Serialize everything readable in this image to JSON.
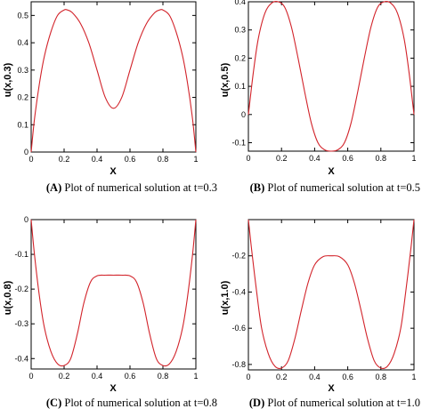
{
  "chart_data": [
    {
      "type": "line",
      "caption_tag": "(A)",
      "caption_text": "Plot of numerical solution at t=0.3",
      "xlabel": "X",
      "ylabel": "u(x,0.3)",
      "xlim": [
        0,
        1
      ],
      "ylim": [
        0,
        0.55
      ],
      "xticks": [
        0,
        0.2,
        0.4,
        0.6,
        0.8,
        1
      ],
      "xtick_labels": [
        "0",
        "0.2",
        "0.4",
        "0.6",
        "0.8",
        "1"
      ],
      "yticks": [
        0,
        0.1,
        0.2,
        0.3,
        0.4,
        0.5
      ],
      "ytick_labels": [
        "0",
        "0.1",
        "0.2",
        "0.3",
        "0.4",
        "0.5"
      ],
      "series": [
        {
          "x": [
            0,
            0.02,
            0.05,
            0.08,
            0.12,
            0.16,
            0.2,
            0.22,
            0.25,
            0.3,
            0.35,
            0.4,
            0.45,
            0.5,
            0.55,
            0.6,
            0.65,
            0.7,
            0.75,
            0.78,
            0.8,
            0.84,
            0.88,
            0.92,
            0.95,
            0.98,
            1.0
          ],
          "y": [
            0.0,
            0.12,
            0.25,
            0.35,
            0.44,
            0.5,
            0.52,
            0.52,
            0.51,
            0.47,
            0.4,
            0.3,
            0.2,
            0.16,
            0.2,
            0.3,
            0.4,
            0.47,
            0.51,
            0.52,
            0.52,
            0.5,
            0.44,
            0.35,
            0.25,
            0.12,
            0.0
          ]
        }
      ]
    },
    {
      "type": "line",
      "caption_tag": "(B)",
      "caption_text": "Plot of numerical solution at t=0.5",
      "xlabel": "X",
      "ylabel": "u(x,0.5)",
      "xlim": [
        0,
        1
      ],
      "ylim": [
        -0.13,
        0.4
      ],
      "xticks": [
        0,
        0.2,
        0.4,
        0.6,
        0.8,
        1
      ],
      "xtick_labels": [
        "0",
        "0.2",
        "0.4",
        "0.6",
        "0.8",
        "1"
      ],
      "yticks": [
        -0.1,
        0,
        0.1,
        0.2,
        0.3,
        0.4
      ],
      "ytick_labels": [
        "-0.1",
        "0",
        "0.1",
        "0.2",
        "0.3",
        "0.4"
      ],
      "series": [
        {
          "x": [
            0,
            0.03,
            0.06,
            0.1,
            0.14,
            0.18,
            0.22,
            0.26,
            0.3,
            0.34,
            0.38,
            0.42,
            0.46,
            0.5,
            0.54,
            0.58,
            0.62,
            0.66,
            0.7,
            0.74,
            0.78,
            0.82,
            0.86,
            0.9,
            0.94,
            0.97,
            1.0
          ],
          "y": [
            0.0,
            0.15,
            0.27,
            0.36,
            0.395,
            0.4,
            0.38,
            0.31,
            0.2,
            0.08,
            -0.03,
            -0.1,
            -0.125,
            -0.13,
            -0.125,
            -0.1,
            -0.03,
            0.08,
            0.2,
            0.31,
            0.38,
            0.4,
            0.395,
            0.36,
            0.27,
            0.15,
            0.0
          ]
        }
      ]
    },
    {
      "type": "line",
      "caption_tag": "(C)",
      "caption_text": "Plot of numerical solution at t=0.8",
      "xlabel": "X",
      "ylabel": "u(x,0.8)",
      "xlim": [
        0,
        1
      ],
      "ylim": [
        -0.43,
        0
      ],
      "xticks": [
        0,
        0.2,
        0.4,
        0.6,
        0.8,
        1
      ],
      "xtick_labels": [
        "0",
        "0.2",
        "0.4",
        "0.6",
        "0.8",
        "1"
      ],
      "yticks": [
        -0.4,
        -0.3,
        -0.2,
        -0.1,
        0
      ],
      "ytick_labels": [
        "-0.4",
        "-0.3",
        "-0.2",
        "-0.1",
        "0"
      ],
      "series": [
        {
          "x": [
            0,
            0.02,
            0.05,
            0.08,
            0.12,
            0.16,
            0.2,
            0.24,
            0.28,
            0.32,
            0.36,
            0.4,
            0.45,
            0.5,
            0.55,
            0.6,
            0.64,
            0.68,
            0.72,
            0.76,
            0.8,
            0.84,
            0.88,
            0.92,
            0.95,
            0.98,
            1.0
          ],
          "y": [
            0.0,
            -0.1,
            -0.22,
            -0.31,
            -0.38,
            -0.415,
            -0.42,
            -0.4,
            -0.33,
            -0.24,
            -0.18,
            -0.162,
            -0.16,
            -0.16,
            -0.16,
            -0.162,
            -0.18,
            -0.24,
            -0.33,
            -0.4,
            -0.42,
            -0.415,
            -0.38,
            -0.31,
            -0.22,
            -0.1,
            0.0
          ]
        }
      ]
    },
    {
      "type": "line",
      "caption_tag": "(D)",
      "caption_text": "Plot of numerical solution at t=1.0",
      "xlabel": "X",
      "ylabel": "u(x,1.0)",
      "xlim": [
        0,
        1
      ],
      "ylim": [
        -0.83,
        0
      ],
      "xticks": [
        0,
        0.2,
        0.4,
        0.6,
        0.8,
        1
      ],
      "xtick_labels": [
        "0",
        "0.2",
        "0.4",
        "0.6",
        "0.8",
        "1"
      ],
      "yticks": [
        -0.8,
        -0.6,
        -0.4,
        -0.2
      ],
      "ytick_labels": [
        "-0.8",
        "-0.6",
        "-0.4",
        "-0.2"
      ],
      "series": [
        {
          "x": [
            0,
            0.02,
            0.05,
            0.08,
            0.12,
            0.16,
            0.2,
            0.24,
            0.28,
            0.32,
            0.36,
            0.4,
            0.45,
            0.5,
            0.55,
            0.6,
            0.64,
            0.68,
            0.72,
            0.76,
            0.8,
            0.84,
            0.88,
            0.92,
            0.95,
            0.98,
            1.0
          ],
          "y": [
            0.0,
            -0.17,
            -0.4,
            -0.6,
            -0.74,
            -0.81,
            -0.82,
            -0.78,
            -0.66,
            -0.5,
            -0.35,
            -0.25,
            -0.205,
            -0.2,
            -0.205,
            -0.25,
            -0.35,
            -0.5,
            -0.66,
            -0.78,
            -0.82,
            -0.81,
            -0.74,
            -0.6,
            -0.4,
            -0.17,
            0.0
          ]
        }
      ]
    }
  ]
}
